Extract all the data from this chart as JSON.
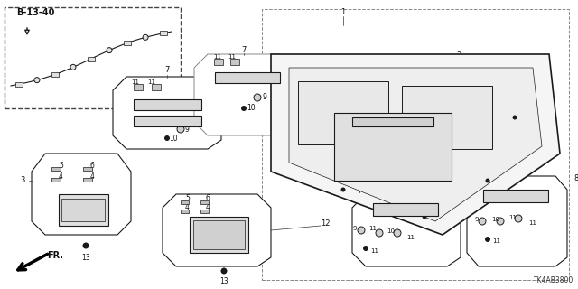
{
  "bg_color": "#ffffff",
  "diagram_code": "TK4AB3800",
  "ref_label": "B-13-40",
  "fr_label": "FR.",
  "fig_width": 6.4,
  "fig_height": 3.2,
  "dpi": 100,
  "line_color": "#1a1a1a",
  "gray": "#888888",
  "light_gray": "#cccccc",
  "dark": "#111111"
}
